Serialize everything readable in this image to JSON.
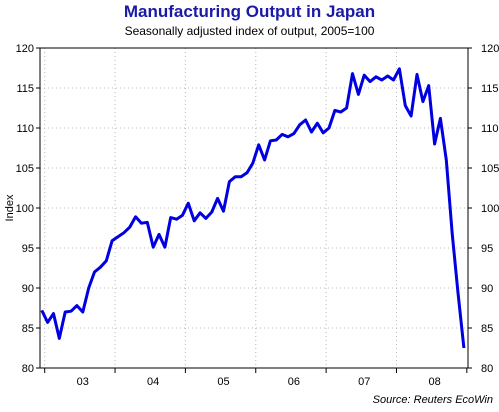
{
  "chart_data": {
    "type": "line",
    "title": "Manufacturing Output in Japan",
    "subtitle": "Seasonally adjusted index of output, 2005=100",
    "ylabel": "Index",
    "xlabel": "",
    "source": "Source: Reuters EcoWin",
    "ylim": [
      80,
      120
    ],
    "yticks": [
      80,
      85,
      90,
      95,
      100,
      105,
      110,
      115,
      120
    ],
    "grid": true,
    "x_categories": [
      "03",
      "04",
      "05",
      "06",
      "07",
      "08"
    ],
    "series": [
      {
        "color": "#0000e0",
        "x": [
          "2002-12",
          "2003-01",
          "2003-02",
          "2003-03",
          "2003-04",
          "2003-05",
          "2003-06",
          "2003-07",
          "2003-08",
          "2003-09",
          "2003-10",
          "2003-11",
          "2003-12",
          "2004-01",
          "2004-02",
          "2004-03",
          "2004-04",
          "2004-05",
          "2004-06",
          "2004-07",
          "2004-08",
          "2004-09",
          "2004-10",
          "2004-11",
          "2004-12",
          "2005-01",
          "2005-02",
          "2005-03",
          "2005-04",
          "2005-05",
          "2005-06",
          "2005-07",
          "2005-08",
          "2005-09",
          "2005-10",
          "2005-11",
          "2005-12",
          "2006-01",
          "2006-02",
          "2006-03",
          "2006-04",
          "2006-05",
          "2006-06",
          "2006-07",
          "2006-08",
          "2006-09",
          "2006-10",
          "2006-11",
          "2006-12",
          "2007-01",
          "2007-02",
          "2007-03",
          "2007-04",
          "2007-05",
          "2007-06",
          "2007-07",
          "2007-08",
          "2007-09",
          "2007-10",
          "2007-11",
          "2007-12",
          "2008-01",
          "2008-02",
          "2008-03",
          "2008-04",
          "2008-05",
          "2008-06",
          "2008-07",
          "2008-08",
          "2008-09",
          "2008-10",
          "2008-11",
          "2008-12"
        ],
        "values": [
          87.2,
          85.7,
          86.8,
          83.7,
          87.0,
          87.1,
          87.8,
          87.0,
          90.0,
          92.0,
          92.6,
          93.4,
          95.9,
          96.4,
          96.9,
          97.6,
          98.9,
          98.1,
          98.2,
          95.1,
          96.7,
          95.1,
          98.8,
          98.6,
          99.1,
          100.6,
          98.4,
          99.4,
          98.7,
          99.5,
          101.2,
          99.6,
          103.3,
          103.9,
          103.9,
          104.4,
          105.6,
          107.9,
          106.0,
          108.4,
          108.5,
          109.2,
          108.9,
          109.3,
          110.4,
          111.0,
          109.5,
          110.6,
          109.4,
          110.0,
          112.2,
          112.0,
          112.5,
          116.8,
          114.2,
          116.6,
          115.8,
          116.4,
          116.0,
          116.5,
          116.0,
          117.4,
          112.8,
          111.5,
          116.7,
          113.3,
          115.3,
          108.0,
          111.2,
          106.0,
          96.8,
          89.4,
          82.5
        ]
      }
    ]
  }
}
